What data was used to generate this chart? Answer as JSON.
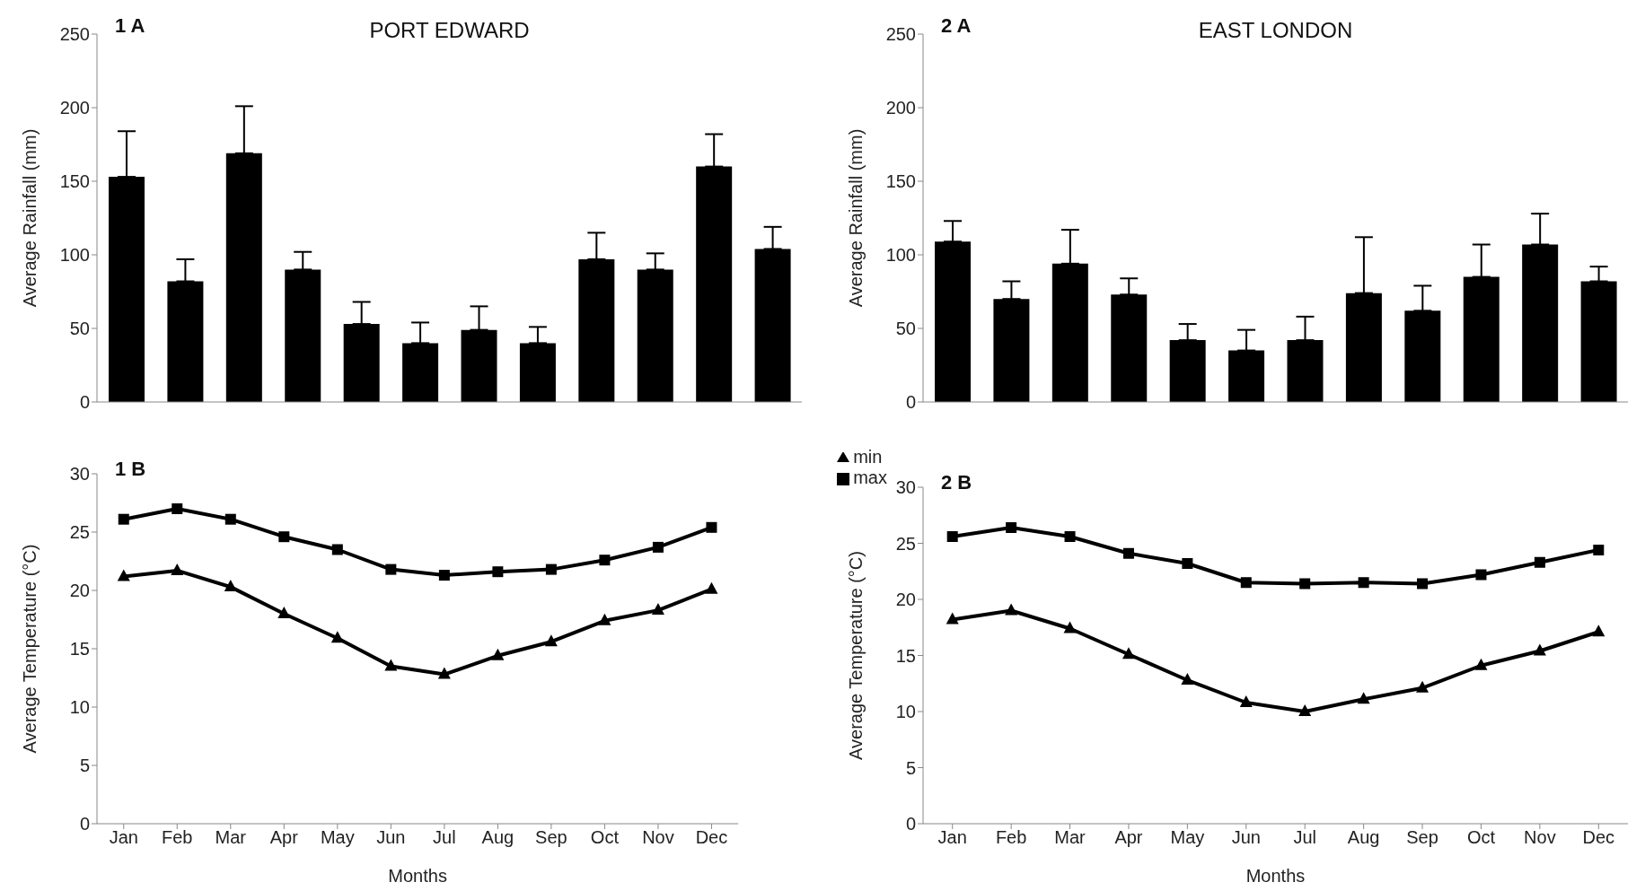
{
  "chart_data": [
    {
      "type": "bar",
      "title": "PORT EDWARD",
      "ylabel": "Average Rainfall (mm)",
      "annotations": [
        "1 A"
      ],
      "categories": [
        null,
        null,
        null,
        null,
        null,
        null,
        null,
        null,
        null,
        null,
        null,
        null
      ],
      "tick_labels": "y",
      "values": [
        153,
        82,
        169,
        90,
        53,
        40,
        49,
        40,
        97,
        90,
        160,
        104
      ],
      "errors": [
        [
          153,
          184
        ],
        [
          82,
          97
        ],
        [
          169,
          201
        ],
        [
          90,
          102
        ],
        [
          53,
          68
        ],
        [
          40,
          54
        ],
        [
          49,
          65
        ],
        [
          40,
          51
        ],
        [
          97,
          115
        ],
        [
          90,
          101
        ],
        [
          160,
          182
        ],
        [
          104,
          119
        ]
      ],
      "color": "#000000",
      "ylim": [
        0,
        250
      ],
      "yticks": [
        0,
        50,
        100,
        150,
        200,
        250
      ]
    },
    {
      "type": "bar",
      "title": "EAST LONDON",
      "ylabel": "Average Rainfall (mm)",
      "annotations": [
        "2 A"
      ],
      "categories": [
        null,
        null,
        null,
        null,
        null,
        null,
        null,
        null,
        null,
        null,
        null,
        null
      ],
      "tick_labels": "y",
      "values": [
        109,
        70,
        94,
        73,
        42,
        35,
        42,
        74,
        62,
        85,
        107,
        82
      ],
      "errors": [
        [
          109,
          123
        ],
        [
          70,
          82
        ],
        [
          94,
          117
        ],
        [
          73,
          84
        ],
        [
          42,
          53
        ],
        [
          35,
          49
        ],
        [
          42,
          58
        ],
        [
          74,
          112
        ],
        [
          62,
          79
        ],
        [
          85,
          107
        ],
        [
          107,
          128
        ],
        [
          82,
          92
        ]
      ],
      "color": "#000000",
      "ylim": [
        0,
        250
      ],
      "yticks": [
        0,
        50,
        100,
        150,
        200,
        250
      ]
    },
    {
      "type": "line",
      "xlabel": "Months",
      "ylabel": "Average Temperature (°C)",
      "annotations": [
        "1 B"
      ],
      "categories": [
        "Jan",
        "Feb",
        "Mar",
        "Apr",
        "May",
        "Jun",
        "Jul",
        "Aug",
        "Sep",
        "Oct",
        "Nov",
        "Dec"
      ],
      "legend": "top right",
      "series": [
        {
          "name": "min",
          "color": "#000000",
          "marker": "triangle",
          "values": [
            21.2,
            21.7,
            20.3,
            18.0,
            15.9,
            13.5,
            12.8,
            14.4,
            15.6,
            17.4,
            18.3,
            20.1
          ]
        },
        {
          "name": "max",
          "color": "#000000",
          "marker": "square",
          "values": [
            26.1,
            27.0,
            26.1,
            24.6,
            23.5,
            21.8,
            21.3,
            21.6,
            21.8,
            22.6,
            23.7,
            25.4
          ]
        }
      ],
      "ylim": [
        0,
        30
      ],
      "yticks": [
        0,
        5,
        10,
        15,
        20,
        25,
        30
      ]
    },
    {
      "type": "line",
      "xlabel": "Months",
      "ylabel": "Average Temperature (°C)",
      "annotations": [
        "2 B"
      ],
      "categories": [
        "Jan",
        "Feb",
        "Mar",
        "Apr",
        "May",
        "Jun",
        "Jul",
        "Aug",
        "Sep",
        "Oct",
        "Nov",
        "Dec"
      ],
      "series": [
        {
          "color": "#000000",
          "marker": "triangle",
          "values": [
            18.2,
            19.0,
            17.4,
            15.1,
            12.8,
            10.8,
            10.0,
            11.1,
            12.1,
            14.1,
            15.4,
            17.1
          ]
        },
        {
          "color": "#000000",
          "marker": "square",
          "values": [
            25.6,
            26.4,
            25.6,
            24.1,
            23.2,
            21.5,
            21.4,
            21.5,
            21.4,
            22.2,
            23.3,
            24.4
          ]
        }
      ],
      "ylim": [
        0,
        30
      ],
      "yticks": [
        0,
        5,
        10,
        15,
        20,
        25,
        30
      ]
    }
  ]
}
